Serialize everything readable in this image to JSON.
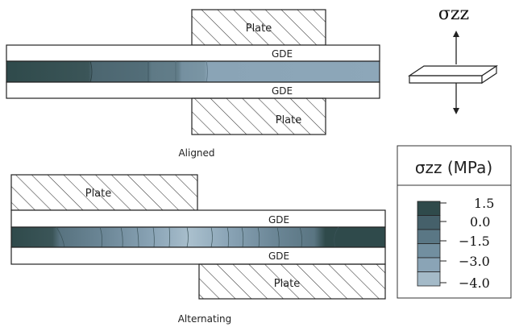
{
  "aligned": {
    "caption": "Aligned",
    "plate_top_label": "Plate",
    "gde_top_label": "GDE",
    "gde_bottom_label": "GDE",
    "plate_bottom_label": "Plate"
  },
  "alternating": {
    "caption": "Alternating",
    "plate_top_label": "Plate",
    "gde_top_label": "GDE",
    "gde_bottom_label": "GDE",
    "plate_bottom_label": "Plate"
  },
  "sketch": {
    "title": "σzz"
  },
  "legend": {
    "title": "σzz (MPa)",
    "ticks": [
      "1.5",
      "0.0",
      "−1.5",
      "−3.0",
      "−4.0"
    ],
    "colors": [
      "#2f4a4b",
      "#45606a",
      "#5a7785",
      "#728fa0",
      "#8aa4b6",
      "#a4bac8"
    ]
  },
  "colors": {
    "stroke": "#222222",
    "hatch": "#333333",
    "membrane_dark": "#2f4a4b",
    "membrane_light": "#8da7b9"
  }
}
